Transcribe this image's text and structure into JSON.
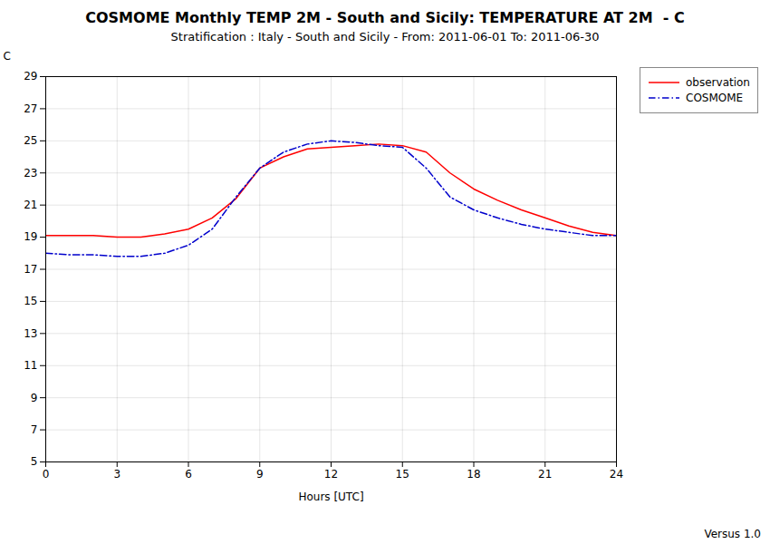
{
  "chart_data": {
    "type": "line",
    "title": "COSMOME Monthly TEMP 2M - South and Sicily: TEMPERATURE AT 2M  - C",
    "subtitle": "Stratification : Italy - South and Sicily - From: 2011-06-01 To: 2011-06-30",
    "xlabel": "Hours [UTC]",
    "ylabel": "C",
    "annotations": [
      "Versus 1.0"
    ],
    "x": [
      0,
      1,
      2,
      3,
      4,
      5,
      6,
      7,
      8,
      9,
      10,
      11,
      12,
      13,
      14,
      15,
      16,
      17,
      18,
      19,
      20,
      21,
      22,
      23,
      24
    ],
    "series": [
      {
        "name": "observation",
        "color": "#ff0000",
        "line_style": "solid",
        "values": [
          19.1,
          19.1,
          19.1,
          19.0,
          19.0,
          19.2,
          19.5,
          20.2,
          21.4,
          23.3,
          24.0,
          24.5,
          24.6,
          24.7,
          24.8,
          24.7,
          24.3,
          23.0,
          22.0,
          21.3,
          20.7,
          20.2,
          19.7,
          19.3,
          19.1
        ]
      },
      {
        "name": "COSMOME",
        "color": "#0000cc",
        "line_style": "dashdot",
        "values": [
          18.0,
          17.9,
          17.9,
          17.8,
          17.8,
          18.0,
          18.5,
          19.5,
          21.5,
          23.3,
          24.3,
          24.8,
          25.0,
          24.9,
          24.7,
          24.6,
          23.3,
          21.5,
          20.7,
          20.2,
          19.8,
          19.5,
          19.3,
          19.1,
          19.1
        ]
      }
    ],
    "xlim": [
      0,
      24
    ],
    "ylim": [
      5,
      29
    ],
    "xticks": [
      0,
      3,
      6,
      9,
      12,
      15,
      18,
      21,
      24
    ],
    "yticks": [
      5,
      7,
      9,
      11,
      13,
      15,
      17,
      19,
      21,
      23,
      25,
      27,
      29
    ],
    "grid": true,
    "legend": "upper right"
  }
}
